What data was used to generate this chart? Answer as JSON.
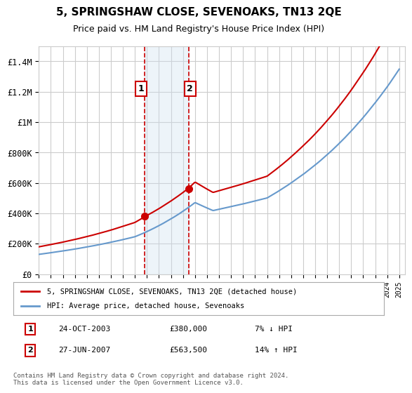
{
  "title": "5, SPRINGSHAW CLOSE, SEVENOAKS, TN13 2QE",
  "subtitle": "Price paid vs. HM Land Registry's House Price Index (HPI)",
  "xlabel": "",
  "ylabel": "",
  "ylim": [
    0,
    1500000
  ],
  "yticks": [
    0,
    200000,
    400000,
    600000,
    800000,
    1000000,
    1200000,
    1400000
  ],
  "ytick_labels": [
    "£0",
    "£200K",
    "£400K",
    "£600K",
    "£800K",
    "£1M",
    "£1.2M",
    "£1.4M"
  ],
  "sale1_date_num": 2003.82,
  "sale1_price": 380000,
  "sale1_label": "1",
  "sale1_hpi_diff": "7% ↓ HPI",
  "sale2_date_num": 2007.49,
  "sale2_price": 563500,
  "sale2_label": "2",
  "sale2_hpi_diff": "14% ↑ HPI",
  "shade_color": "#cce0f0",
  "vline_color": "#cc0000",
  "marker_color": "#cc0000",
  "hpi_line_color": "#6699cc",
  "price_line_color": "#cc0000",
  "legend_label_price": "5, SPRINGSHAW CLOSE, SEVENOAKS, TN13 2QE (detached house)",
  "legend_label_hpi": "HPI: Average price, detached house, Sevenoaks",
  "table_row1": [
    "1",
    "24-OCT-2003",
    "£380,000",
    "7% ↓ HPI"
  ],
  "table_row2": [
    "2",
    "27-JUN-2007",
    "£563,500",
    "14% ↑ HPI"
  ],
  "footer": "Contains HM Land Registry data © Crown copyright and database right 2024.\nThis data is licensed under the Open Government Licence v3.0.",
  "background_color": "#ffffff",
  "grid_color": "#cccccc"
}
